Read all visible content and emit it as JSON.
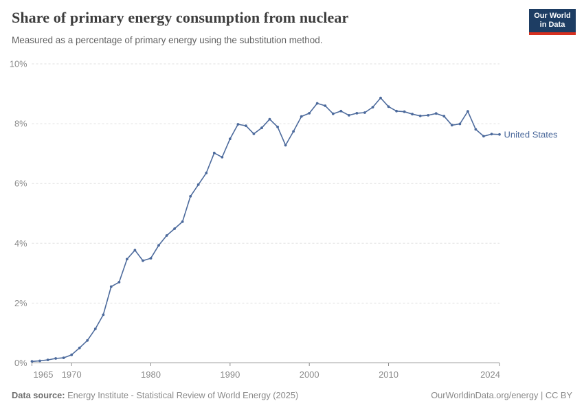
{
  "header": {
    "title": "Share of primary energy consumption from nuclear",
    "subtitle": "Measured as a percentage of primary energy using the substitution method.",
    "logo": {
      "line1": "Our World",
      "line2": "in Data"
    }
  },
  "chart_data": {
    "type": "line",
    "title": "Share of primary energy consumption from nuclear",
    "subtitle": "Measured as a percentage of primary energy using the substitution method.",
    "x": [
      1965,
      1966,
      1967,
      1968,
      1969,
      1970,
      1971,
      1972,
      1973,
      1974,
      1975,
      1976,
      1977,
      1978,
      1979,
      1980,
      1981,
      1982,
      1983,
      1984,
      1985,
      1986,
      1987,
      1988,
      1989,
      1990,
      1991,
      1992,
      1993,
      1994,
      1995,
      1996,
      1997,
      1998,
      1999,
      2000,
      2001,
      2002,
      2003,
      2004,
      2005,
      2006,
      2007,
      2008,
      2009,
      2010,
      2011,
      2012,
      2013,
      2014,
      2015,
      2016,
      2017,
      2018,
      2019,
      2020,
      2021,
      2022,
      2023,
      2024
    ],
    "series": [
      {
        "name": "United States",
        "values": [
          0.05,
          0.07,
          0.1,
          0.15,
          0.17,
          0.27,
          0.5,
          0.75,
          1.14,
          1.61,
          2.55,
          2.7,
          3.47,
          3.77,
          3.42,
          3.5,
          3.93,
          4.26,
          4.49,
          4.72,
          5.57,
          5.96,
          6.35,
          7.02,
          6.88,
          7.49,
          7.98,
          7.93,
          7.66,
          7.86,
          8.15,
          7.89,
          7.28,
          7.74,
          8.24,
          8.35,
          8.68,
          8.6,
          8.33,
          8.42,
          8.28,
          8.35,
          8.37,
          8.55,
          8.86,
          8.57,
          8.42,
          8.4,
          8.32,
          8.26,
          8.28,
          8.34,
          8.25,
          7.95,
          7.99,
          8.41,
          7.81,
          7.58,
          7.65,
          7.64
        ]
      }
    ],
    "xlim": [
      1965,
      2024
    ],
    "ylim": [
      0,
      10
    ],
    "x_ticks": [
      1965,
      1970,
      1980,
      1990,
      2000,
      2010,
      2024
    ],
    "y_ticks": [
      0,
      2,
      4,
      6,
      8,
      10
    ],
    "y_suffix": "%",
    "xlabel": "",
    "ylabel": "",
    "grid": "horizontal-dashed",
    "legend_position": "end-of-line",
    "colors": {
      "line": "#4c6a9c",
      "grid": "#e0e0e0",
      "axis": "#8c8c8c",
      "tick_labels": "#8a8a8a"
    }
  },
  "footer": {
    "source_label": "Data source:",
    "source_text": " Energy Institute - Statistical Review of World Energy (2025)",
    "credit": "OurWorldinData.org/energy | CC BY"
  }
}
